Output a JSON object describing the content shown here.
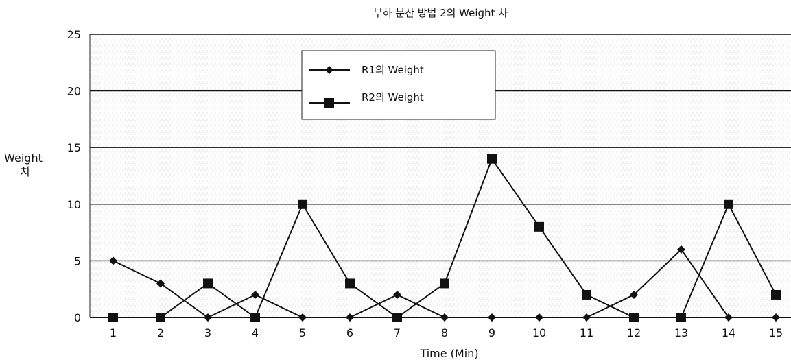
{
  "chart_data": {
    "type": "line",
    "title": "부하 분산 방법 2의 Weight 차",
    "xlabel": "Time (Min)",
    "ylabel_lines": [
      "Weight",
      "차"
    ],
    "x": [
      1,
      2,
      3,
      4,
      5,
      6,
      7,
      8,
      9,
      10,
      11,
      12,
      13,
      14,
      15
    ],
    "ylim": [
      0,
      25
    ],
    "yticks": [
      0,
      5,
      10,
      15,
      20,
      25
    ],
    "grid": "horizontal",
    "legend_position": "top-center",
    "series": [
      {
        "name": "R1의  Weight",
        "marker": "diamond",
        "color": "#111111",
        "values": [
          5,
          3,
          0,
          2,
          0,
          0,
          2,
          0,
          0,
          0,
          0,
          2,
          6,
          0,
          0
        ]
      },
      {
        "name": "R2의  Weight",
        "marker": "square",
        "color": "#111111",
        "values": [
          0,
          0,
          3,
          0,
          10,
          3,
          0,
          3,
          14,
          8,
          2,
          0,
          0,
          10,
          2
        ]
      }
    ]
  }
}
